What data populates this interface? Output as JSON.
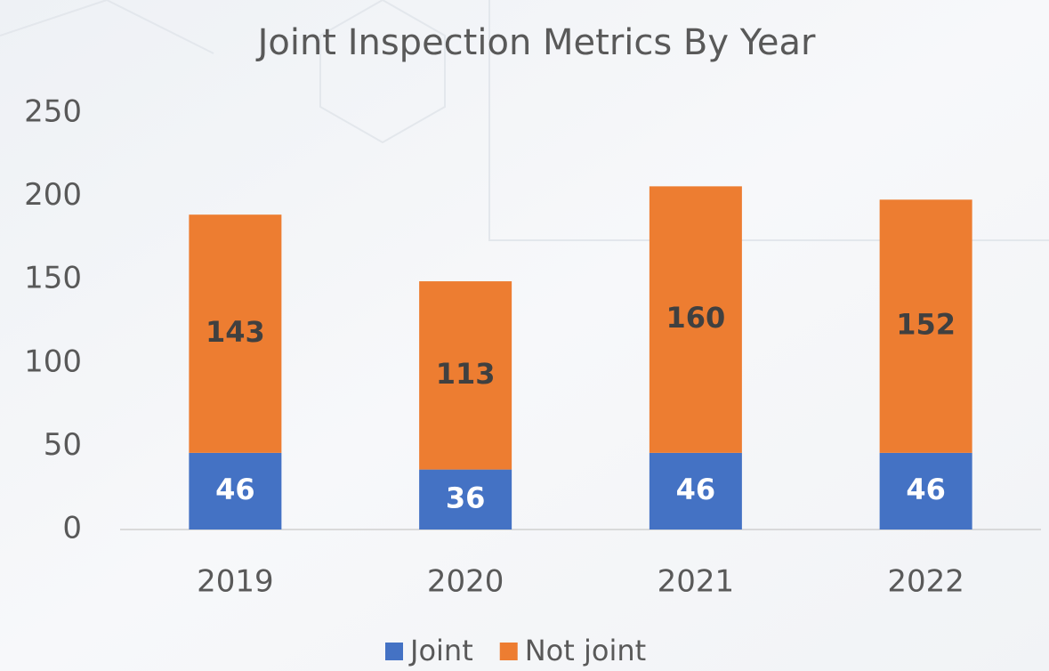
{
  "chart_data": {
    "type": "stacked_bar",
    "title": "Joint Inspection Metrics By Year",
    "categories": [
      "2019",
      "2020",
      "2021",
      "2022"
    ],
    "series": [
      {
        "name": "Joint",
        "color": "#4472c4",
        "label_color": "#ffffff",
        "values": [
          46,
          36,
          46,
          46
        ]
      },
      {
        "name": "Not joint",
        "color": "#ed7d31",
        "label_color": "#404040",
        "values": [
          143,
          113,
          160,
          152
        ]
      }
    ],
    "ylim": [
      0,
      250
    ],
    "yticks": [
      0,
      50,
      100,
      150,
      200,
      250
    ],
    "grid": false,
    "legend": "bottom"
  }
}
